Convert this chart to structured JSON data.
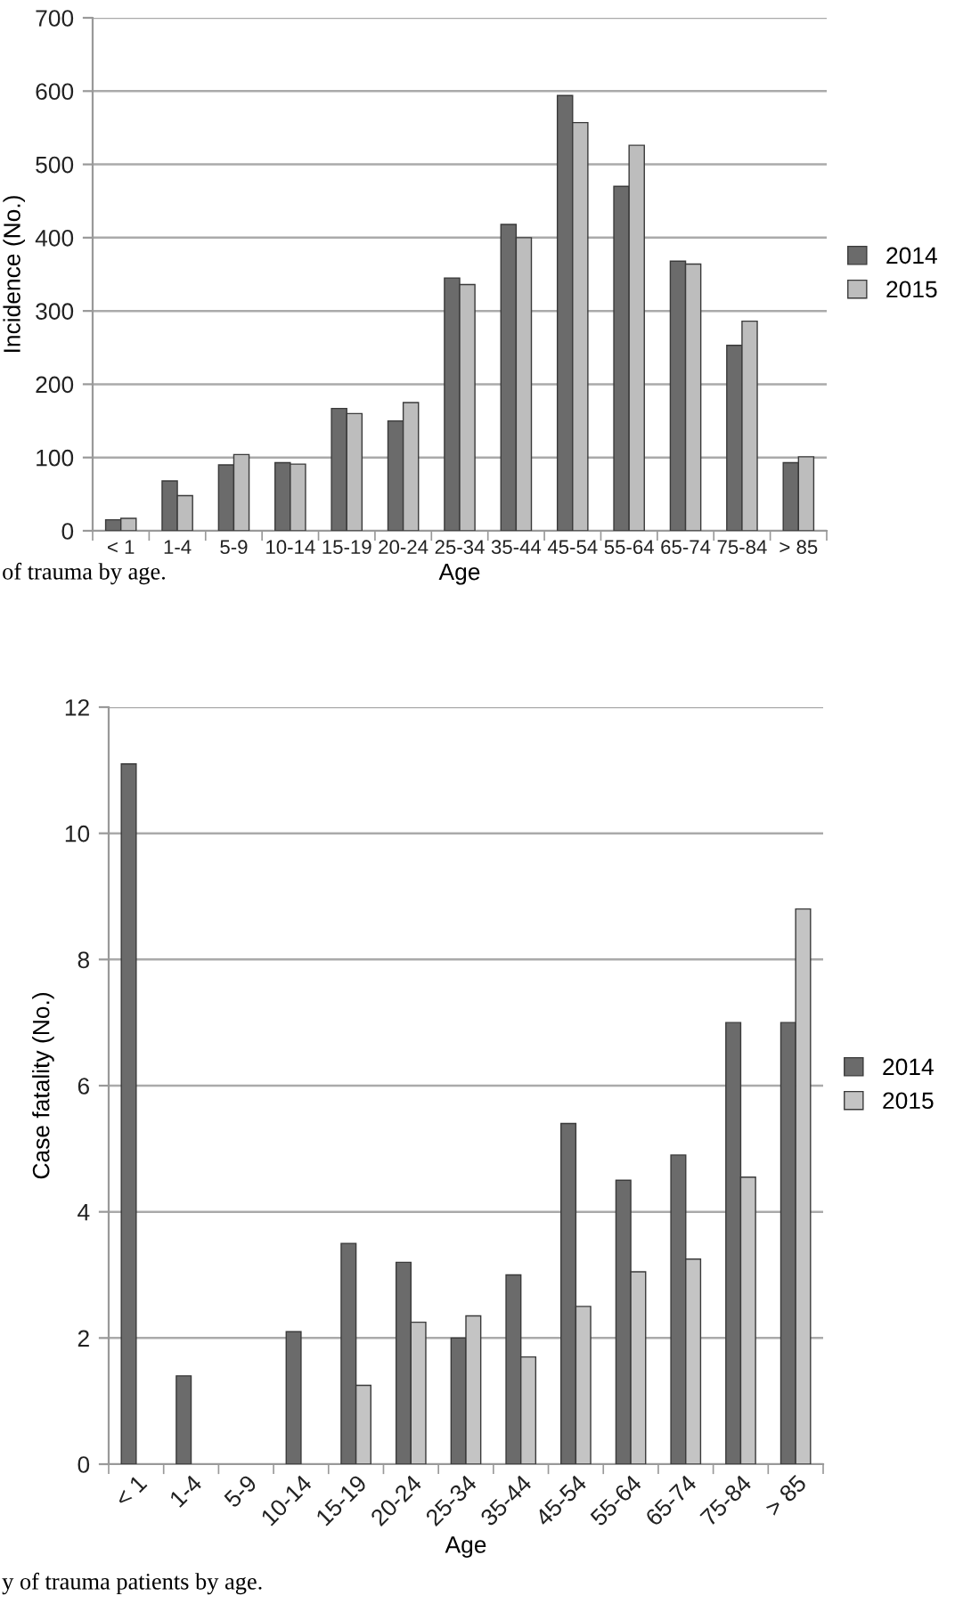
{
  "chart_data": [
    {
      "type": "bar",
      "xlabel": "Age",
      "ylabel": "Incidence (No.)",
      "categories": [
        "< 1",
        "1-4",
        "5-9",
        "10-14",
        "15-19",
        "20-24",
        "25-34",
        "35-44",
        "45-54",
        "55-64",
        "65-74",
        "75-84",
        "> 85"
      ],
      "series": [
        {
          "name": "2014",
          "color": "#6b6b6b",
          "values": [
            15,
            68,
            90,
            93,
            167,
            150,
            345,
            418,
            594,
            470,
            368,
            253,
            93
          ]
        },
        {
          "name": "2015",
          "color": "#bdbdbd",
          "values": [
            17,
            48,
            104,
            91,
            160,
            175,
            336,
            400,
            557,
            526,
            364,
            286,
            101
          ]
        }
      ],
      "ylim": [
        0,
        700
      ],
      "yticks": [
        0,
        100,
        200,
        300,
        400,
        500,
        600,
        700
      ],
      "grid": "y",
      "legend": "right",
      "annotations": [
        "of trauma by age."
      ]
    },
    {
      "type": "bar",
      "xlabel": "Age",
      "ylabel": "Case fatality (No.)",
      "categories": [
        "< 1",
        "1-4",
        "5-9",
        "10-14",
        "15-19",
        "20-24",
        "25-34",
        "35-44",
        "45-54",
        "55-64",
        "65-74",
        "75-84",
        "> 85"
      ],
      "series": [
        {
          "name": "2014",
          "color": "#6b6b6b",
          "values": [
            11.1,
            1.4,
            null,
            2.1,
            3.5,
            3.2,
            2.0,
            3.0,
            5.4,
            4.5,
            4.9,
            7.0,
            7.0
          ]
        },
        {
          "name": "2015",
          "color": "#c4c4c4",
          "values": [
            null,
            null,
            null,
            null,
            1.25,
            2.25,
            2.35,
            1.7,
            2.5,
            3.05,
            3.25,
            4.55,
            8.8
          ]
        }
      ],
      "ylim": [
        0,
        12
      ],
      "yticks": [
        0,
        2,
        4,
        6,
        8,
        10,
        12
      ],
      "grid": "y",
      "legend": "right",
      "annotations": [
        "y of trauma patients by age."
      ]
    }
  ]
}
